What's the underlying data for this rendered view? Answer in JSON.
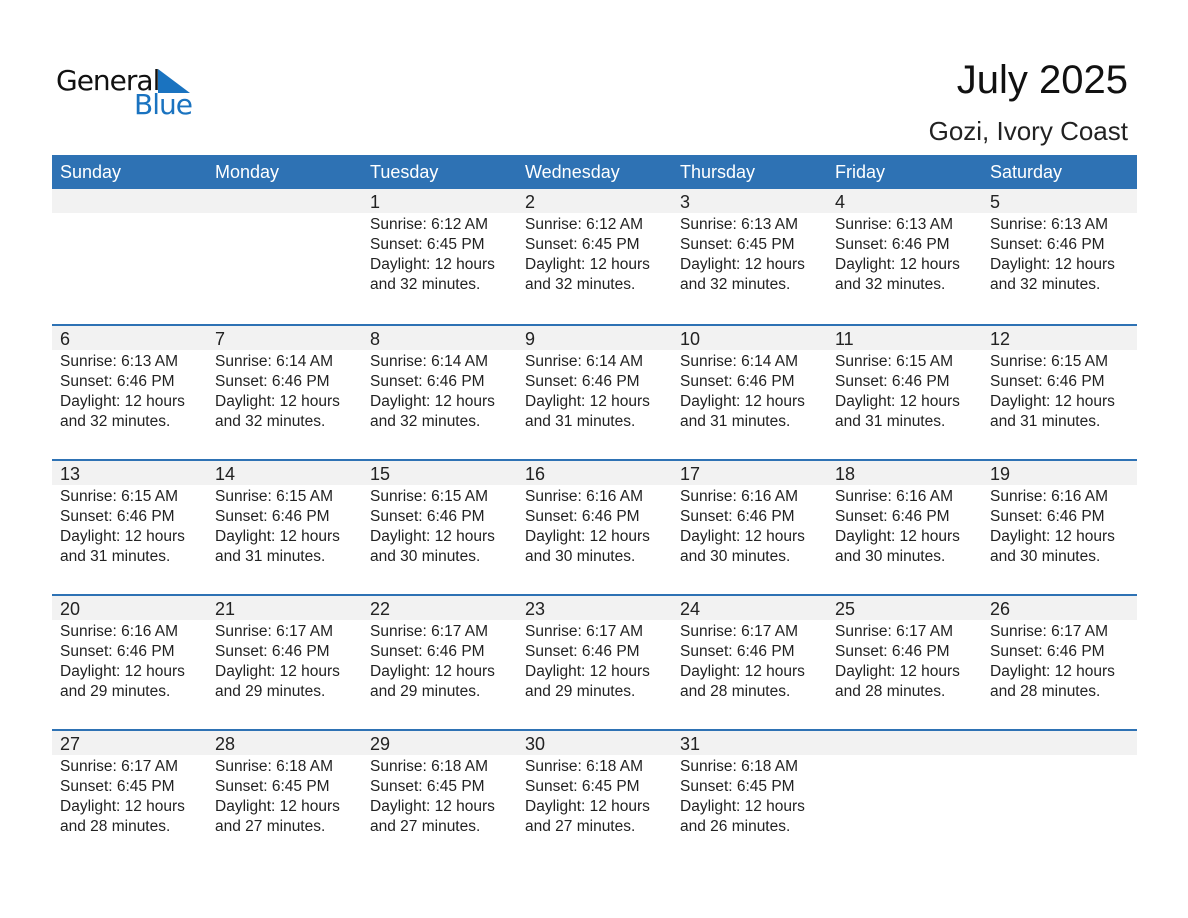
{
  "logo": {
    "text_top": "General",
    "text_bottom": "Blue",
    "color": "#1a73c0"
  },
  "title": "July 2025",
  "location": "Gozi, Ivory Coast",
  "colors": {
    "header": "#2e72b4",
    "day_band": "#f2f2f2"
  },
  "weekdays": [
    "Sunday",
    "Monday",
    "Tuesday",
    "Wednesday",
    "Thursday",
    "Friday",
    "Saturday"
  ],
  "first_weekday_offset": 2,
  "days": [
    {
      "day": "1",
      "sunrise": "Sunrise: 6:12 AM",
      "sunset": "Sunset: 6:45 PM",
      "daylight": "Daylight: 12 hours",
      "minutes": "and 32 minutes."
    },
    {
      "day": "2",
      "sunrise": "Sunrise: 6:12 AM",
      "sunset": "Sunset: 6:45 PM",
      "daylight": "Daylight: 12 hours",
      "minutes": "and 32 minutes."
    },
    {
      "day": "3",
      "sunrise": "Sunrise: 6:13 AM",
      "sunset": "Sunset: 6:45 PM",
      "daylight": "Daylight: 12 hours",
      "minutes": "and 32 minutes."
    },
    {
      "day": "4",
      "sunrise": "Sunrise: 6:13 AM",
      "sunset": "Sunset: 6:46 PM",
      "daylight": "Daylight: 12 hours",
      "minutes": "and 32 minutes."
    },
    {
      "day": "5",
      "sunrise": "Sunrise: 6:13 AM",
      "sunset": "Sunset: 6:46 PM",
      "daylight": "Daylight: 12 hours",
      "minutes": "and 32 minutes."
    },
    {
      "day": "6",
      "sunrise": "Sunrise: 6:13 AM",
      "sunset": "Sunset: 6:46 PM",
      "daylight": "Daylight: 12 hours",
      "minutes": "and 32 minutes."
    },
    {
      "day": "7",
      "sunrise": "Sunrise: 6:14 AM",
      "sunset": "Sunset: 6:46 PM",
      "daylight": "Daylight: 12 hours",
      "minutes": "and 32 minutes."
    },
    {
      "day": "8",
      "sunrise": "Sunrise: 6:14 AM",
      "sunset": "Sunset: 6:46 PM",
      "daylight": "Daylight: 12 hours",
      "minutes": "and 32 minutes."
    },
    {
      "day": "9",
      "sunrise": "Sunrise: 6:14 AM",
      "sunset": "Sunset: 6:46 PM",
      "daylight": "Daylight: 12 hours",
      "minutes": "and 31 minutes."
    },
    {
      "day": "10",
      "sunrise": "Sunrise: 6:14 AM",
      "sunset": "Sunset: 6:46 PM",
      "daylight": "Daylight: 12 hours",
      "minutes": "and 31 minutes."
    },
    {
      "day": "11",
      "sunrise": "Sunrise: 6:15 AM",
      "sunset": "Sunset: 6:46 PM",
      "daylight": "Daylight: 12 hours",
      "minutes": "and 31 minutes."
    },
    {
      "day": "12",
      "sunrise": "Sunrise: 6:15 AM",
      "sunset": "Sunset: 6:46 PM",
      "daylight": "Daylight: 12 hours",
      "minutes": "and 31 minutes."
    },
    {
      "day": "13",
      "sunrise": "Sunrise: 6:15 AM",
      "sunset": "Sunset: 6:46 PM",
      "daylight": "Daylight: 12 hours",
      "minutes": "and 31 minutes."
    },
    {
      "day": "14",
      "sunrise": "Sunrise: 6:15 AM",
      "sunset": "Sunset: 6:46 PM",
      "daylight": "Daylight: 12 hours",
      "minutes": "and 31 minutes."
    },
    {
      "day": "15",
      "sunrise": "Sunrise: 6:15 AM",
      "sunset": "Sunset: 6:46 PM",
      "daylight": "Daylight: 12 hours",
      "minutes": "and 30 minutes."
    },
    {
      "day": "16",
      "sunrise": "Sunrise: 6:16 AM",
      "sunset": "Sunset: 6:46 PM",
      "daylight": "Daylight: 12 hours",
      "minutes": "and 30 minutes."
    },
    {
      "day": "17",
      "sunrise": "Sunrise: 6:16 AM",
      "sunset": "Sunset: 6:46 PM",
      "daylight": "Daylight: 12 hours",
      "minutes": "and 30 minutes."
    },
    {
      "day": "18",
      "sunrise": "Sunrise: 6:16 AM",
      "sunset": "Sunset: 6:46 PM",
      "daylight": "Daylight: 12 hours",
      "minutes": "and 30 minutes."
    },
    {
      "day": "19",
      "sunrise": "Sunrise: 6:16 AM",
      "sunset": "Sunset: 6:46 PM",
      "daylight": "Daylight: 12 hours",
      "minutes": "and 30 minutes."
    },
    {
      "day": "20",
      "sunrise": "Sunrise: 6:16 AM",
      "sunset": "Sunset: 6:46 PM",
      "daylight": "Daylight: 12 hours",
      "minutes": "and 29 minutes."
    },
    {
      "day": "21",
      "sunrise": "Sunrise: 6:17 AM",
      "sunset": "Sunset: 6:46 PM",
      "daylight": "Daylight: 12 hours",
      "minutes": "and 29 minutes."
    },
    {
      "day": "22",
      "sunrise": "Sunrise: 6:17 AM",
      "sunset": "Sunset: 6:46 PM",
      "daylight": "Daylight: 12 hours",
      "minutes": "and 29 minutes."
    },
    {
      "day": "23",
      "sunrise": "Sunrise: 6:17 AM",
      "sunset": "Sunset: 6:46 PM",
      "daylight": "Daylight: 12 hours",
      "minutes": "and 29 minutes."
    },
    {
      "day": "24",
      "sunrise": "Sunrise: 6:17 AM",
      "sunset": "Sunset: 6:46 PM",
      "daylight": "Daylight: 12 hours",
      "minutes": "and 28 minutes."
    },
    {
      "day": "25",
      "sunrise": "Sunrise: 6:17 AM",
      "sunset": "Sunset: 6:46 PM",
      "daylight": "Daylight: 12 hours",
      "minutes": "and 28 minutes."
    },
    {
      "day": "26",
      "sunrise": "Sunrise: 6:17 AM",
      "sunset": "Sunset: 6:46 PM",
      "daylight": "Daylight: 12 hours",
      "minutes": "and 28 minutes."
    },
    {
      "day": "27",
      "sunrise": "Sunrise: 6:17 AM",
      "sunset": "Sunset: 6:45 PM",
      "daylight": "Daylight: 12 hours",
      "minutes": "and 28 minutes."
    },
    {
      "day": "28",
      "sunrise": "Sunrise: 6:18 AM",
      "sunset": "Sunset: 6:45 PM",
      "daylight": "Daylight: 12 hours",
      "minutes": "and 27 minutes."
    },
    {
      "day": "29",
      "sunrise": "Sunrise: 6:18 AM",
      "sunset": "Sunset: 6:45 PM",
      "daylight": "Daylight: 12 hours",
      "minutes": "and 27 minutes."
    },
    {
      "day": "30",
      "sunrise": "Sunrise: 6:18 AM",
      "sunset": "Sunset: 6:45 PM",
      "daylight": "Daylight: 12 hours",
      "minutes": "and 27 minutes."
    },
    {
      "day": "31",
      "sunrise": "Sunrise: 6:18 AM",
      "sunset": "Sunset: 6:45 PM",
      "daylight": "Daylight: 12 hours",
      "minutes": "and 26 minutes."
    }
  ]
}
